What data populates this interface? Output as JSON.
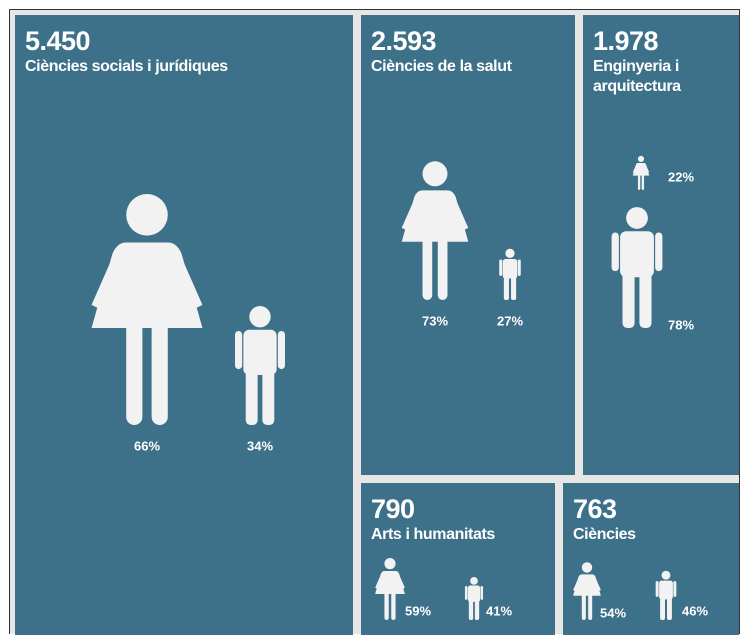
{
  "chart_data": {
    "type": "treemap",
    "categories": [
      "Ciències socials i jurídiques",
      "Ciències de la salut",
      "Enginyeria i arquitectura",
      "Arts i humanitats",
      "Ciències"
    ],
    "values": [
      5450,
      2593,
      1978,
      790,
      763
    ],
    "value_labels": [
      "5.450",
      "2.593",
      "1.978",
      "790",
      "763"
    ],
    "female_pct": [
      66,
      73,
      22,
      59,
      54
    ],
    "female_pct_labels": [
      "66%",
      "73%",
      "22%",
      "59%",
      "54%"
    ],
    "male_pct": [
      34,
      27,
      78,
      41,
      46
    ],
    "male_pct_labels": [
      "34%",
      "27%",
      "78%",
      "41%",
      "46%"
    ],
    "color": "#3d7089"
  }
}
